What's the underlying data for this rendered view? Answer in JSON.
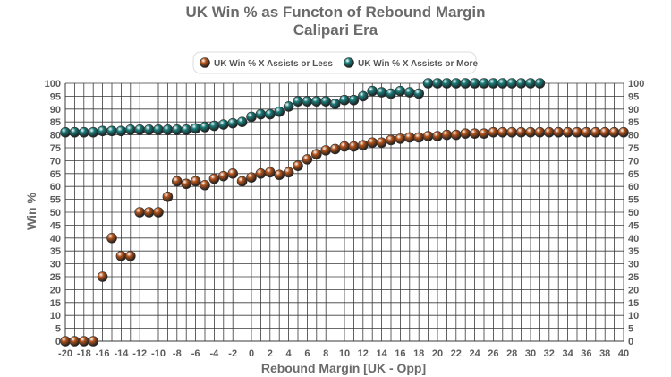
{
  "chart_data": {
    "type": "scatter",
    "title": "UK Win % as Functon of Rebound Margin",
    "subtitle": "Calipari Era",
    "xlabel": "Rebound Margin [UK - Opp]",
    "ylabel": "Win %",
    "xlim": [
      -20,
      40
    ],
    "ylim": [
      0,
      100
    ],
    "x_ticks": [
      "-20",
      "-18",
      "-16",
      "-14",
      "-12",
      "-10",
      "-8",
      "-6",
      "-4",
      "-2",
      "0",
      "2",
      "4",
      "6",
      "8",
      "10",
      "12",
      "14",
      "16",
      "18",
      "20",
      "22",
      "24",
      "26",
      "28",
      "30",
      "32",
      "34",
      "36",
      "38",
      "40"
    ],
    "y_ticks": [
      "0",
      "5",
      "10",
      "15",
      "20",
      "25",
      "30",
      "35",
      "40",
      "45",
      "50",
      "55",
      "60",
      "65",
      "70",
      "75",
      "80",
      "85",
      "90",
      "95",
      "100"
    ],
    "grid": true,
    "legend_position": "top",
    "series": [
      {
        "name": "UK Win % X Assists or Less",
        "color": "#b5541c",
        "x": [
          -20,
          -19,
          -18,
          -17,
          -16,
          -15,
          -14,
          -13,
          -12,
          -11,
          -10,
          -9,
          -8,
          -7,
          -6,
          -5,
          -4,
          -3,
          -2,
          -1,
          0,
          1,
          2,
          3,
          4,
          5,
          6,
          7,
          8,
          9,
          10,
          11,
          12,
          13,
          14,
          15,
          16,
          17,
          18,
          19,
          20,
          21,
          22,
          23,
          24,
          25,
          26,
          27,
          28,
          29,
          30,
          31,
          32,
          33,
          34,
          35,
          36,
          37,
          38,
          39,
          40
        ],
        "y": [
          0,
          0,
          0,
          0,
          25,
          40,
          33,
          33,
          50,
          50,
          50,
          56,
          62,
          61,
          62,
          60.5,
          63,
          64,
          65,
          62,
          63.5,
          65,
          65.5,
          64.5,
          65.5,
          68,
          70.5,
          72.5,
          74,
          74.5,
          75.5,
          75.5,
          76,
          77,
          77,
          78,
          78.5,
          79,
          79,
          79.5,
          79.5,
          80,
          80,
          80.5,
          80.5,
          80.5,
          81,
          81,
          81,
          81,
          81,
          81,
          81,
          81,
          81,
          81,
          81,
          81,
          81,
          81,
          81
        ]
      },
      {
        "name": "UK Win % X Assists or More",
        "color": "#1a7d7b",
        "x": [
          -20,
          -19,
          -18,
          -17,
          -16,
          -15,
          -14,
          -13,
          -12,
          -11,
          -10,
          -9,
          -8,
          -7,
          -6,
          -5,
          -4,
          -3,
          -2,
          -1,
          0,
          1,
          2,
          3,
          4,
          5,
          6,
          7,
          8,
          9,
          10,
          11,
          12,
          13,
          14,
          15,
          16,
          17,
          18,
          19,
          20,
          21,
          22,
          23,
          24,
          25,
          26,
          27,
          28,
          29,
          30,
          31
        ],
        "y": [
          81,
          81,
          81,
          81,
          81.5,
          81.5,
          81.5,
          82,
          82,
          82,
          82,
          82,
          82,
          82,
          82.5,
          83,
          83.5,
          84,
          84.5,
          85,
          87,
          88,
          88,
          89,
          91,
          93,
          93,
          93,
          93,
          92,
          93.5,
          93.5,
          95,
          97,
          96.5,
          96,
          97,
          96.5,
          96,
          100,
          100,
          100,
          100,
          100,
          100,
          100,
          100,
          100,
          100,
          100,
          100,
          100
        ]
      }
    ]
  }
}
